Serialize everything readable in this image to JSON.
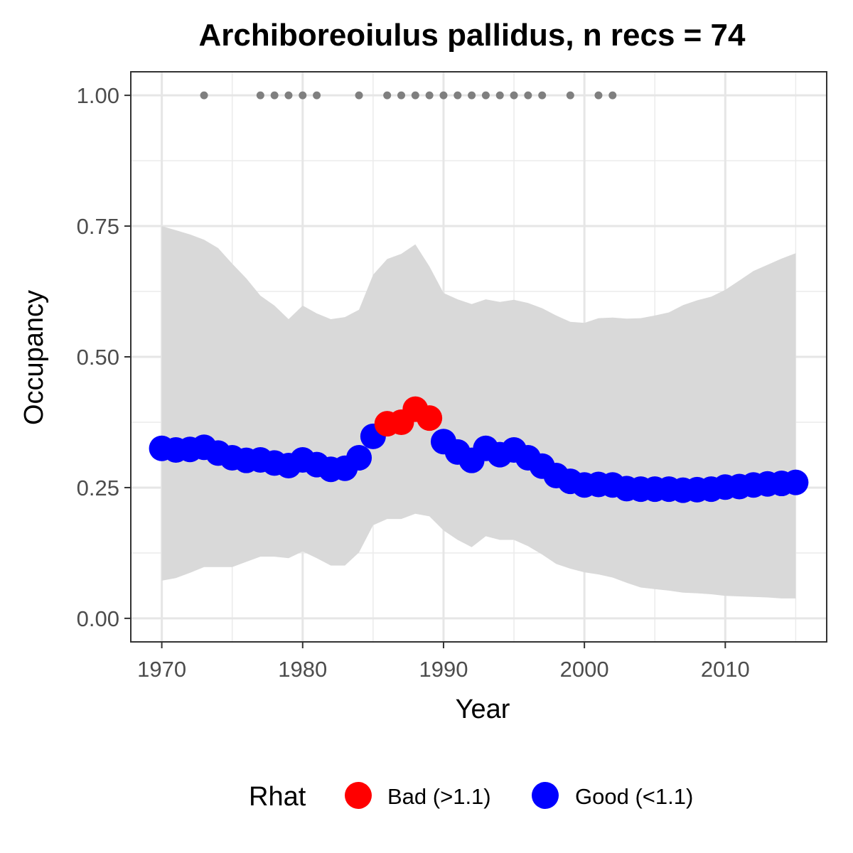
{
  "chart_data": {
    "type": "line",
    "title": "Archiboreoiulus pallidus, n recs = 74",
    "xlabel": "Year",
    "ylabel": "Occupancy",
    "xlim": [
      1967.8,
      2017.2
    ],
    "ylim": [
      -0.045,
      1.045
    ],
    "x_ticks": [
      1970,
      1980,
      1990,
      2000,
      2010
    ],
    "x_minor_ticks": [
      1975,
      1985,
      1995,
      2005,
      2015
    ],
    "y_ticks": [
      0.0,
      0.25,
      0.5,
      0.75,
      1.0
    ],
    "y_tick_labels": [
      "0.00",
      "0.25",
      "0.50",
      "0.75",
      "1.00"
    ],
    "y_minor_ticks": [
      0.125,
      0.375,
      0.625,
      0.875
    ],
    "grid": true,
    "legend": {
      "title": "Rhat",
      "position": "bottom",
      "entries": [
        {
          "label": "Bad (>1.1)",
          "color": "#ff0000"
        },
        {
          "label": "Good (<1.1)",
          "color": "#0000ff"
        }
      ]
    },
    "colors": {
      "bad": "#ff0000",
      "good": "#0000ff",
      "ribbon": "#d9d9d9",
      "records": "#7f7f7f"
    },
    "series": [
      {
        "years": [
          1970,
          1971,
          1972,
          1973,
          1974,
          1975,
          1976,
          1977,
          1978,
          1979,
          1980,
          1981,
          1982,
          1983,
          1984,
          1985,
          1986,
          1987,
          1988,
          1989,
          1990,
          1991,
          1992,
          1993,
          1994,
          1995,
          1996,
          1997,
          1998,
          1999,
          2000,
          2001,
          2002,
          2003,
          2004,
          2005,
          2006,
          2007,
          2008,
          2009,
          2010,
          2011,
          2012,
          2013,
          2014,
          2015
        ],
        "mean": [
          0.325,
          0.322,
          0.323,
          0.327,
          0.316,
          0.307,
          0.302,
          0.303,
          0.297,
          0.292,
          0.303,
          0.294,
          0.285,
          0.287,
          0.307,
          0.348,
          0.372,
          0.375,
          0.4,
          0.383,
          0.338,
          0.318,
          0.302,
          0.325,
          0.313,
          0.322,
          0.307,
          0.291,
          0.273,
          0.262,
          0.255,
          0.256,
          0.255,
          0.248,
          0.247,
          0.247,
          0.247,
          0.245,
          0.246,
          0.247,
          0.251,
          0.252,
          0.255,
          0.257,
          0.258,
          0.26
        ],
        "lower": [
          0.072,
          0.077,
          0.087,
          0.098,
          0.098,
          0.098,
          0.108,
          0.118,
          0.118,
          0.115,
          0.128,
          0.115,
          0.101,
          0.101,
          0.126,
          0.178,
          0.19,
          0.19,
          0.2,
          0.195,
          0.168,
          0.15,
          0.136,
          0.157,
          0.15,
          0.15,
          0.138,
          0.122,
          0.104,
          0.095,
          0.088,
          0.084,
          0.078,
          0.068,
          0.059,
          0.056,
          0.053,
          0.049,
          0.048,
          0.046,
          0.043,
          0.042,
          0.041,
          0.04,
          0.038,
          0.038
        ],
        "upper": [
          0.75,
          0.742,
          0.734,
          0.724,
          0.708,
          0.678,
          0.65,
          0.617,
          0.598,
          0.572,
          0.598,
          0.583,
          0.572,
          0.576,
          0.59,
          0.657,
          0.687,
          0.697,
          0.715,
          0.673,
          0.622,
          0.61,
          0.601,
          0.61,
          0.605,
          0.609,
          0.603,
          0.593,
          0.579,
          0.567,
          0.565,
          0.574,
          0.575,
          0.573,
          0.574,
          0.579,
          0.585,
          0.599,
          0.608,
          0.615,
          0.628,
          0.646,
          0.664,
          0.676,
          0.688,
          0.698
        ],
        "rhat": [
          "good",
          "good",
          "good",
          "good",
          "good",
          "good",
          "good",
          "good",
          "good",
          "good",
          "good",
          "good",
          "good",
          "good",
          "good",
          "good",
          "bad",
          "bad",
          "bad",
          "bad",
          "good",
          "good",
          "good",
          "good",
          "good",
          "good",
          "good",
          "good",
          "good",
          "good",
          "good",
          "good",
          "good",
          "good",
          "good",
          "good",
          "good",
          "good",
          "good",
          "good",
          "good",
          "good",
          "good",
          "good",
          "good",
          "good"
        ]
      }
    ],
    "records": {
      "y": 1.0,
      "years": [
        1973,
        1977,
        1978,
        1979,
        1980,
        1981,
        1984,
        1986,
        1987,
        1988,
        1989,
        1990,
        1991,
        1992,
        1993,
        1994,
        1995,
        1996,
        1997,
        1999,
        2001,
        2002
      ]
    }
  }
}
